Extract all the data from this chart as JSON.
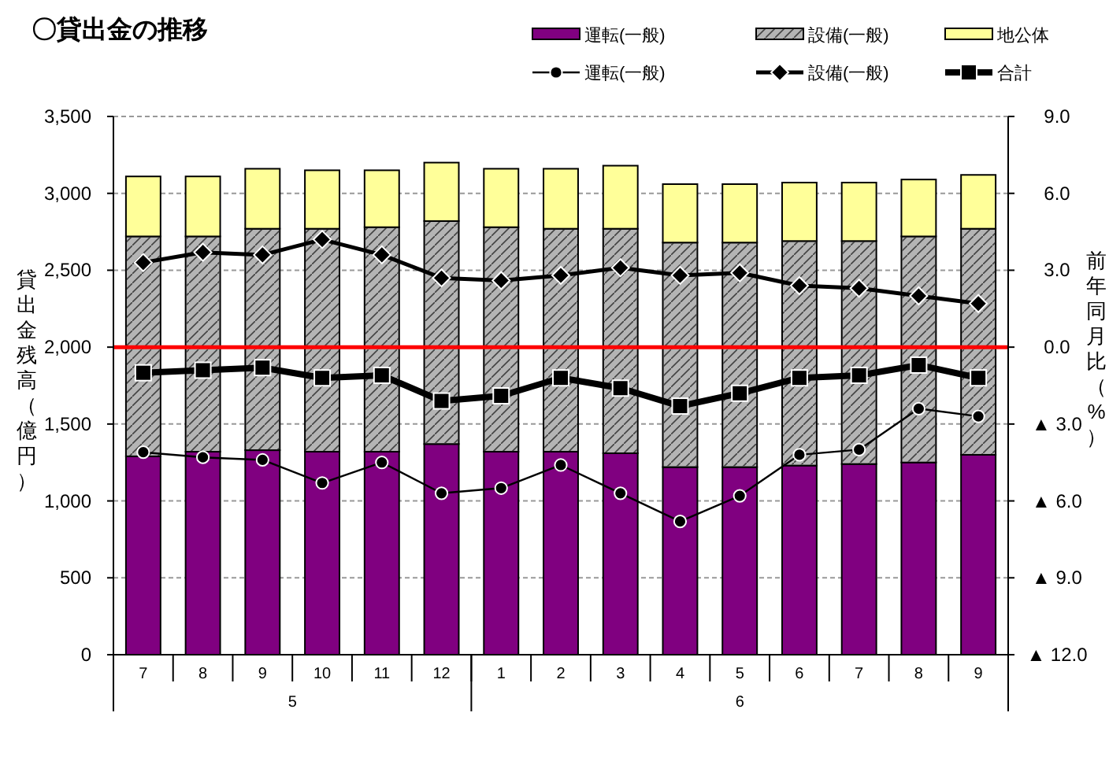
{
  "chart_data": {
    "type": "bar",
    "title": "〇貸出金の推移",
    "ylabel": "貸出金残高（億円）",
    "y2label": "前年同月比（%）",
    "categories": [
      "7",
      "8",
      "9",
      "10",
      "11",
      "12",
      "1",
      "2",
      "3",
      "4",
      "5",
      "6",
      "7",
      "8",
      "9"
    ],
    "annotations": [
      "5",
      "6"
    ],
    "stacked": true,
    "grid": "y",
    "legend": "top",
    "series": [
      {
        "name": "運転(一般)",
        "type": "bar",
        "color": "#800080",
        "values": [
          1290,
          1320,
          1330,
          1320,
          1320,
          1370,
          1320,
          1320,
          1310,
          1220,
          1220,
          1230,
          1240,
          1250,
          1300
        ]
      },
      {
        "name": "設備(一般)",
        "type": "bar",
        "color": "#b4b4b4",
        "values": [
          1430,
          1400,
          1440,
          1450,
          1460,
          1450,
          1460,
          1450,
          1460,
          1460,
          1460,
          1460,
          1450,
          1470,
          1470
        ]
      },
      {
        "name": "地公体",
        "type": "bar",
        "color": "#ffff99",
        "values": [
          390,
          390,
          390,
          380,
          370,
          380,
          380,
          390,
          410,
          380,
          380,
          380,
          380,
          370,
          350
        ]
      },
      {
        "name": "運転(一般)",
        "type": "line",
        "axis": "y2",
        "color": "#000000",
        "marker": "circle",
        "values": [
          -4.1,
          -4.3,
          -4.4,
          -5.3,
          -4.5,
          -5.7,
          -5.5,
          -4.6,
          -5.7,
          -6.8,
          -5.8,
          -4.2,
          -4.0,
          -2.4,
          -2.7
        ]
      },
      {
        "name": "設備(一般)",
        "type": "line",
        "axis": "y2",
        "color": "#000000",
        "marker": "diamond",
        "values": [
          3.3,
          3.7,
          3.6,
          4.2,
          3.6,
          2.7,
          2.6,
          2.8,
          3.1,
          2.8,
          2.9,
          2.4,
          2.3,
          2.0,
          1.7
        ]
      },
      {
        "name": "合計",
        "type": "line",
        "axis": "y2",
        "color": "#000000",
        "marker": "square",
        "values": [
          -1.0,
          -0.9,
          -0.8,
          -1.2,
          -1.1,
          -2.1,
          -1.9,
          -1.2,
          -1.6,
          -2.3,
          -1.8,
          -1.2,
          -1.1,
          -0.7,
          -1.2
        ]
      }
    ],
    "ylim": [
      0,
      3500
    ],
    "yticks": [
      0,
      500,
      {
        "value": 1000,
        "label": "1,000"
      },
      {
        "value": 1500,
        "label": "1,500"
      },
      {
        "value": 2000,
        "label": "2,000"
      },
      {
        "value": 2500,
        "label": "2,500"
      },
      {
        "value": 3000,
        "label": "3,000"
      },
      {
        "value": 3500,
        "label": "3,500"
      }
    ],
    "y2lim": [
      -12,
      9
    ],
    "y2ticks": [
      {
        "value": -12,
        "label": "▲ 12.0"
      },
      {
        "value": -9,
        "label": "▲ 9.0"
      },
      {
        "value": -6,
        "label": "▲ 6.0"
      },
      {
        "value": -3,
        "label": "▲ 3.0"
      },
      {
        "value": 0,
        "label": "0.0"
      },
      {
        "value": 3,
        "label": "3.0"
      },
      {
        "value": 6,
        "label": "6.0"
      },
      {
        "value": 9,
        "label": "9.0"
      }
    ],
    "ref_lines": [
      {
        "axis": "y2",
        "value": 0,
        "color": "#ff0000"
      }
    ]
  }
}
